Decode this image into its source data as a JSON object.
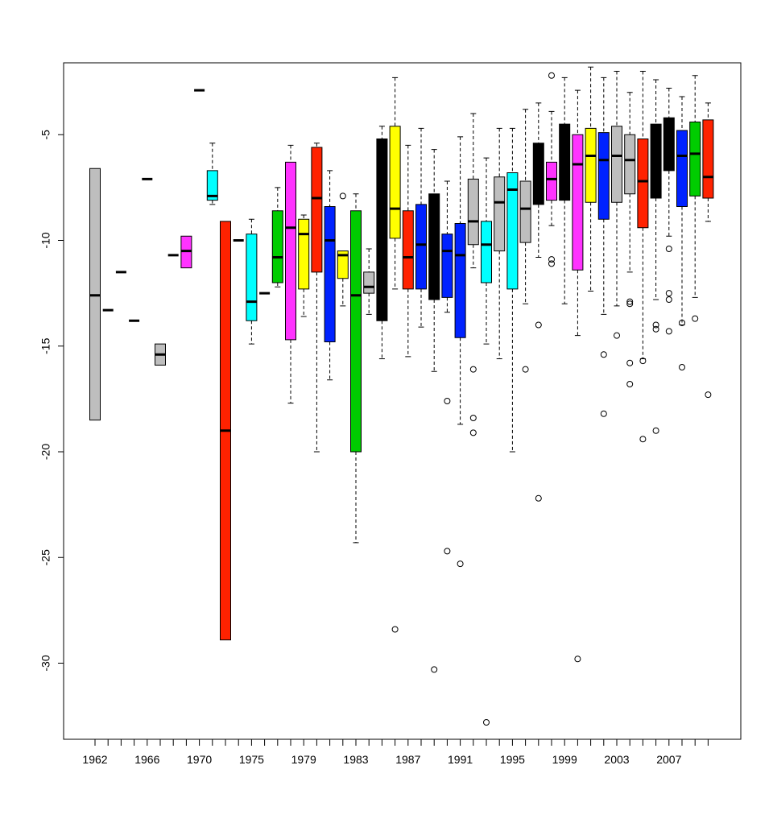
{
  "chart_data": {
    "type": "boxplot",
    "title": "",
    "xlabel": "",
    "ylabel": "",
    "ylim": [
      -33.6,
      -1.6
    ],
    "yticks": [
      -30,
      -25,
      -20,
      -15,
      -10,
      -5
    ],
    "x_tick_labels": [
      "1962",
      "1966",
      "1970",
      "1975",
      "1979",
      "1983",
      "1987",
      "1991",
      "1995",
      "1999",
      "2003",
      "2007"
    ],
    "x_tick_label_positions": [
      1,
      5,
      9,
      13,
      17,
      21,
      25,
      29,
      33,
      37,
      41,
      45
    ],
    "n_groups": 48,
    "grid": false,
    "legend": "none",
    "boxes": [
      {
        "pos": 1,
        "color": "#bebebe",
        "min": -18.5,
        "q1": -18.5,
        "median": -12.6,
        "q3": -6.6,
        "max": -6.6,
        "outliers": []
      },
      {
        "pos": 2,
        "color": "#bebebe",
        "min": -13.3,
        "q1": -13.3,
        "median": -13.3,
        "q3": -13.3,
        "max": -13.3,
        "outliers": []
      },
      {
        "pos": 3,
        "color": "#bebebe",
        "min": -11.5,
        "q1": -11.5,
        "median": -11.5,
        "q3": -11.5,
        "max": -11.5,
        "outliers": []
      },
      {
        "pos": 4,
        "color": "#bebebe",
        "min": -13.8,
        "q1": -13.8,
        "median": -13.8,
        "q3": -13.8,
        "max": -13.8,
        "outliers": []
      },
      {
        "pos": 5,
        "color": "#bebebe",
        "min": -7.1,
        "q1": -7.1,
        "median": -7.1,
        "q3": -7.1,
        "max": -7.1,
        "outliers": []
      },
      {
        "pos": 6,
        "color": "#bebebe",
        "min": -15.9,
        "q1": -15.9,
        "median": -15.4,
        "q3": -14.9,
        "max": -14.9,
        "outliers": []
      },
      {
        "pos": 7,
        "color": "#bebebe",
        "min": -10.7,
        "q1": -10.7,
        "median": -10.7,
        "q3": -10.7,
        "max": -10.7,
        "outliers": []
      },
      {
        "pos": 8,
        "color": "#ff33ff",
        "min": -11.3,
        "q1": -11.3,
        "median": -10.5,
        "q3": -9.8,
        "max": -9.8,
        "outliers": []
      },
      {
        "pos": 9,
        "color": "#bebebe",
        "min": -2.9,
        "q1": -2.9,
        "median": -2.9,
        "q3": -2.9,
        "max": -2.9,
        "outliers": []
      },
      {
        "pos": 10,
        "color": "#00ffff",
        "min": -8.3,
        "q1": -8.1,
        "median": -7.9,
        "q3": -6.7,
        "max": -5.4,
        "outliers": []
      },
      {
        "pos": 11,
        "color": "#ff2200",
        "min": -28.9,
        "q1": -28.9,
        "median": -19.0,
        "q3": -9.1,
        "max": -9.1,
        "outliers": []
      },
      {
        "pos": 12,
        "color": "#bebebe",
        "min": -10.0,
        "q1": -10.0,
        "median": -10.0,
        "q3": -10.0,
        "max": -10.0,
        "outliers": []
      },
      {
        "pos": 13,
        "color": "#00ffff",
        "min": -14.9,
        "q1": -13.8,
        "median": -12.9,
        "q3": -9.7,
        "max": -9.0,
        "outliers": []
      },
      {
        "pos": 14,
        "color": "#bebebe",
        "min": -12.5,
        "q1": -12.5,
        "median": -12.5,
        "q3": -12.5,
        "max": -12.5,
        "outliers": []
      },
      {
        "pos": 15,
        "color": "#00cc00",
        "min": -12.2,
        "q1": -12.0,
        "median": -10.8,
        "q3": -8.6,
        "max": -7.5,
        "outliers": []
      },
      {
        "pos": 16,
        "color": "#ff33ff",
        "min": -17.7,
        "q1": -14.7,
        "median": -9.4,
        "q3": -6.3,
        "max": -5.5,
        "outliers": []
      },
      {
        "pos": 17,
        "color": "#ffff00",
        "min": -13.6,
        "q1": -12.3,
        "median": -9.7,
        "q3": -9.0,
        "max": -8.8,
        "outliers": []
      },
      {
        "pos": 18,
        "color": "#ff2200",
        "min": -20.0,
        "q1": -11.5,
        "median": -8.0,
        "q3": -5.6,
        "max": -5.4,
        "outliers": []
      },
      {
        "pos": 19,
        "color": "#0022ff",
        "min": -16.6,
        "q1": -14.8,
        "median": -10.0,
        "q3": -8.4,
        "max": -6.7,
        "outliers": []
      },
      {
        "pos": 20,
        "color": "#ffff00",
        "min": -13.1,
        "q1": -11.8,
        "median": -10.7,
        "q3": -10.5,
        "max": -10.5,
        "outliers": [
          -7.9
        ]
      },
      {
        "pos": 21,
        "color": "#00cc00",
        "min": -24.3,
        "q1": -20.0,
        "median": -12.6,
        "q3": -8.6,
        "max": -7.8,
        "outliers": []
      },
      {
        "pos": 22,
        "color": "#bebebe",
        "min": -13.5,
        "q1": -12.5,
        "median": -12.2,
        "q3": -11.5,
        "max": -10.4,
        "outliers": []
      },
      {
        "pos": 23,
        "color": "#000000",
        "min": -15.6,
        "q1": -13.8,
        "median": -9.4,
        "q3": -5.2,
        "max": -4.6,
        "outliers": []
      },
      {
        "pos": 24,
        "color": "#ffff00",
        "min": -12.3,
        "q1": -9.9,
        "median": -8.5,
        "q3": -4.6,
        "max": -2.3,
        "outliers": [
          -28.4
        ]
      },
      {
        "pos": 25,
        "color": "#ff2200",
        "min": -15.5,
        "q1": -12.3,
        "median": -10.8,
        "q3": -8.6,
        "max": -5.5,
        "outliers": []
      },
      {
        "pos": 26,
        "color": "#0022ff",
        "min": -14.1,
        "q1": -12.3,
        "median": -10.2,
        "q3": -8.3,
        "max": -4.7,
        "outliers": []
      },
      {
        "pos": 27,
        "color": "#000000",
        "min": -16.2,
        "q1": -12.8,
        "median": -10.6,
        "q3": -7.8,
        "max": -5.7,
        "outliers": [
          -30.3
        ]
      },
      {
        "pos": 28,
        "color": "#0022ff",
        "min": -13.4,
        "q1": -12.7,
        "median": -10.5,
        "q3": -9.7,
        "max": -7.2,
        "outliers": [
          -17.6,
          -24.7
        ]
      },
      {
        "pos": 29,
        "color": "#0022ff",
        "min": -18.7,
        "q1": -14.6,
        "median": -10.7,
        "q3": -9.2,
        "max": -5.1,
        "outliers": [
          -25.3
        ]
      },
      {
        "pos": 30,
        "color": "#bebebe",
        "min": -11.3,
        "q1": -10.2,
        "median": -9.1,
        "q3": -7.1,
        "max": -4.0,
        "outliers": [
          -16.1,
          -18.4,
          -19.1
        ]
      },
      {
        "pos": 31,
        "color": "#00ffff",
        "min": -14.9,
        "q1": -12.0,
        "median": -10.2,
        "q3": -9.1,
        "max": -6.1,
        "outliers": [
          -32.8
        ]
      },
      {
        "pos": 32,
        "color": "#bebebe",
        "min": -15.6,
        "q1": -10.5,
        "median": -8.2,
        "q3": -7.0,
        "max": -4.7,
        "outliers": []
      },
      {
        "pos": 33,
        "color": "#00ffff",
        "min": -20.0,
        "q1": -12.3,
        "median": -7.6,
        "q3": -6.8,
        "max": -4.7,
        "outliers": []
      },
      {
        "pos": 34,
        "color": "#bebebe",
        "min": -13.0,
        "q1": -10.1,
        "median": -8.5,
        "q3": -7.2,
        "max": -3.8,
        "outliers": [
          -16.1
        ]
      },
      {
        "pos": 35,
        "color": "#000000",
        "min": -10.8,
        "q1": -8.3,
        "median": -6.9,
        "q3": -5.4,
        "max": -3.5,
        "outliers": [
          -14.0,
          -22.2
        ]
      },
      {
        "pos": 36,
        "color": "#ff33ff",
        "min": -9.3,
        "q1": -8.1,
        "median": -7.1,
        "q3": -6.3,
        "max": -3.9,
        "outliers": [
          -10.9,
          -11.1,
          -2.2
        ]
      },
      {
        "pos": 37,
        "color": "#000000",
        "min": -13.0,
        "q1": -8.1,
        "median": -6.3,
        "q3": -4.5,
        "max": -2.3,
        "outliers": []
      },
      {
        "pos": 38,
        "color": "#ff33ff",
        "min": -14.5,
        "q1": -11.4,
        "median": -6.4,
        "q3": -5.0,
        "max": -2.9,
        "outliers": [
          -29.8
        ]
      },
      {
        "pos": 39,
        "color": "#ffff00",
        "min": -12.4,
        "q1": -8.2,
        "median": -6.0,
        "q3": -4.7,
        "max": -1.8,
        "outliers": []
      },
      {
        "pos": 40,
        "color": "#0022ff",
        "min": -13.5,
        "q1": -9.0,
        "median": -6.2,
        "q3": -4.9,
        "max": -2.3,
        "outliers": [
          -15.4,
          -18.2
        ]
      },
      {
        "pos": 41,
        "color": "#bebebe",
        "min": -13.1,
        "q1": -8.2,
        "median": -6.0,
        "q3": -4.6,
        "max": -2.0,
        "outliers": [
          -14.5
        ]
      },
      {
        "pos": 42,
        "color": "#bebebe",
        "min": -11.5,
        "q1": -7.8,
        "median": -6.2,
        "q3": -5.0,
        "max": -3.0,
        "outliers": [
          -12.9,
          -13.0,
          -15.8,
          -16.8
        ]
      },
      {
        "pos": 43,
        "color": "#ff2200",
        "min": -15.6,
        "q1": -9.4,
        "median": -7.2,
        "q3": -5.2,
        "max": -2.0,
        "outliers": [
          -15.7,
          -19.4
        ]
      },
      {
        "pos": 44,
        "color": "#000000",
        "min": -12.8,
        "q1": -8.0,
        "median": -6.5,
        "q3": -4.5,
        "max": -2.4,
        "outliers": [
          -14.0,
          -14.2,
          -19.0
        ]
      },
      {
        "pos": 45,
        "color": "#000000",
        "min": -9.8,
        "q1": -6.7,
        "median": -5.5,
        "q3": -4.2,
        "max": -2.8,
        "outliers": [
          -10.4,
          -12.5,
          -12.8,
          -14.3
        ]
      },
      {
        "pos": 46,
        "color": "#0022ff",
        "min": -14.0,
        "q1": -8.4,
        "median": -6.0,
        "q3": -4.8,
        "max": -3.2,
        "outliers": [
          -13.9,
          -16.0
        ]
      },
      {
        "pos": 47,
        "color": "#00cc00",
        "min": -12.7,
        "q1": -7.9,
        "median": -5.9,
        "q3": -4.4,
        "max": -2.2,
        "outliers": [
          -13.7
        ]
      },
      {
        "pos": 48,
        "color": "#ff2200",
        "min": -9.1,
        "q1": -8.0,
        "median": -7.0,
        "q3": -4.3,
        "max": -3.5,
        "outliers": [
          -17.3
        ]
      }
    ]
  }
}
